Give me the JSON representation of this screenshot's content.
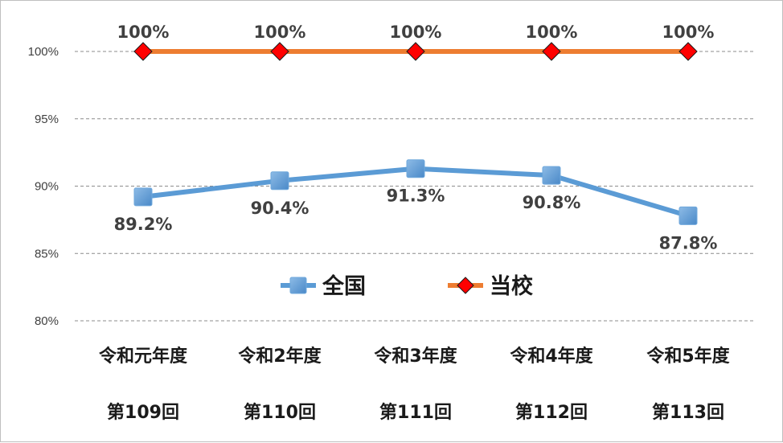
{
  "chart_data": {
    "type": "line",
    "title": "",
    "xlabel": "",
    "ylabel": "",
    "ylim": [
      80,
      100
    ],
    "y_ticks": [
      "80%",
      "85%",
      "90%",
      "95%",
      "100%"
    ],
    "y_tick_values": [
      80,
      85,
      90,
      95,
      100
    ],
    "grid": true,
    "legend_position": "center",
    "categories": [
      "令和元年度",
      "令和2年度",
      "令和3年度",
      "令和4年度",
      "令和5年度"
    ],
    "categories_sub": [
      "第109回",
      "第110回",
      "第111回",
      "第112回",
      "第113回"
    ],
    "series": [
      {
        "name": "全国",
        "values": [
          89.2,
          90.4,
          91.3,
          90.8,
          87.8
        ],
        "labels": [
          "89.2%",
          "90.4%",
          "91.3%",
          "90.8%",
          "87.8%"
        ],
        "color": "#5b9bd5",
        "marker": "square",
        "label_position": "below"
      },
      {
        "name": "当校",
        "values": [
          100,
          100,
          100,
          100,
          100
        ],
        "labels": [
          "100%",
          "100%",
          "100%",
          "100%",
          "100%"
        ],
        "color": "#ed7d31",
        "marker_color": "#ff0000",
        "marker": "diamond",
        "label_position": "above"
      }
    ]
  }
}
